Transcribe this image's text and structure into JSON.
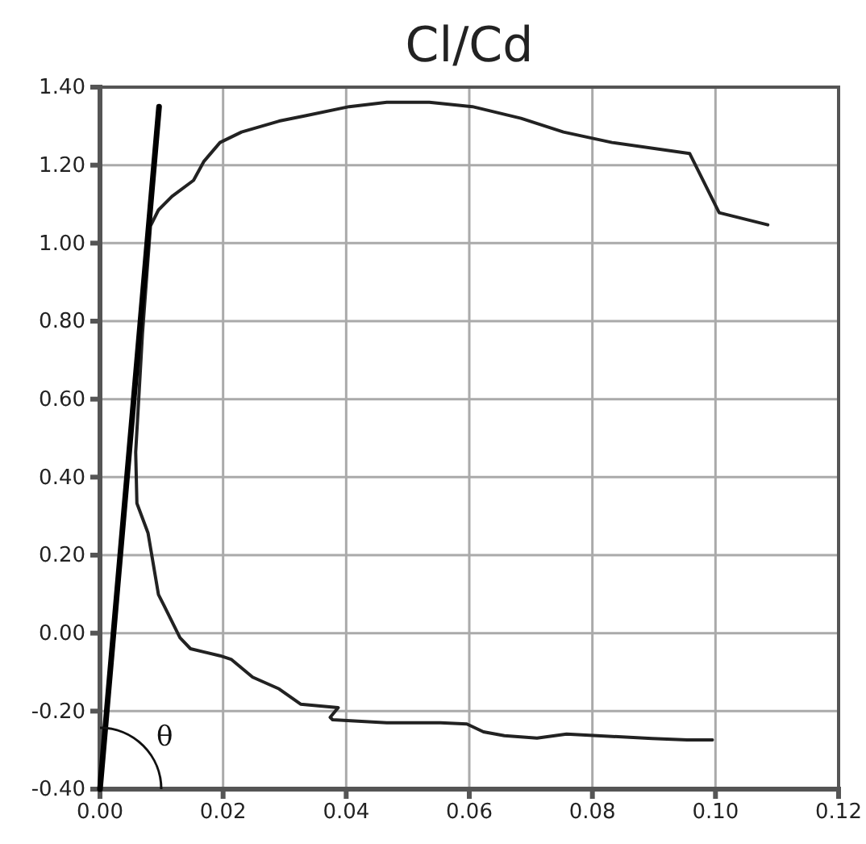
{
  "chart_data": {
    "type": "line",
    "title": "Cl/Cd",
    "xlim": [
      0,
      0.12
    ],
    "ylim": [
      -0.4,
      1.4
    ],
    "xticks": [
      {
        "value": 0,
        "label": "0.00"
      },
      {
        "value": 0.02,
        "label": "0.02"
      },
      {
        "value": 0.04,
        "label": "0.04"
      },
      {
        "value": 0.06,
        "label": "0.06"
      },
      {
        "value": 0.08,
        "label": "0.08"
      },
      {
        "value": 0.1,
        "label": "0.10"
      },
      {
        "value": 0.12,
        "label": "0.12"
      }
    ],
    "yticks": [
      {
        "value": -0.4,
        "label": "-0.40"
      },
      {
        "value": -0.2,
        "label": "-0.20"
      },
      {
        "value": 0,
        "label": "0.00"
      },
      {
        "value": 0.2,
        "label": "0.20"
      },
      {
        "value": 0.4,
        "label": "0.40"
      },
      {
        "value": 0.6,
        "label": "0.60"
      },
      {
        "value": 0.8,
        "label": "0.80"
      },
      {
        "value": 1,
        "label": "1.00"
      },
      {
        "value": 1.2,
        "label": "1.20"
      },
      {
        "value": 1.4,
        "label": "1.40"
      }
    ],
    "grid": true,
    "marker": "none",
    "line_style": "solid",
    "annotations": [
      "θ"
    ],
    "series": [
      {
        "color": "#222222",
        "x": [
          0.0995,
          0.0954,
          0.0897,
          0.0758,
          0.071,
          0.0657,
          0.0623,
          0.0596,
          0.0553,
          0.0466,
          0.0378,
          0.0374,
          0.0387,
          0.0326,
          0.0291,
          0.0248,
          0.0213,
          0.0195,
          0.0147,
          0.013,
          0.0104,
          0.0095,
          0.0078,
          0.006,
          0.0058,
          0.0069,
          0.0082,
          0.0095,
          0.0117,
          0.0152,
          0.0169,
          0.0195,
          0.023,
          0.0291,
          0.0335,
          0.0405,
          0.0466,
          0.0535,
          0.0605,
          0.0684,
          0.0753,
          0.0832,
          0.0958,
          0.1006,
          0.1085
        ],
        "values": [
          -0.274,
          -0.274,
          -0.27,
          -0.259,
          -0.269,
          -0.263,
          -0.253,
          -0.233,
          -0.23,
          -0.23,
          -0.222,
          -0.216,
          -0.191,
          -0.182,
          -0.143,
          -0.113,
          -0.067,
          -0.058,
          -0.04,
          -0.012,
          0.071,
          0.099,
          0.257,
          0.333,
          0.464,
          0.768,
          1.044,
          1.085,
          1.12,
          1.161,
          1.21,
          1.258,
          1.285,
          1.313,
          1.327,
          1.35,
          1.361,
          1.361,
          1.35,
          1.32,
          1.285,
          1.258,
          1.23,
          1.078,
          1.047
        ]
      },
      {
        "color": "#000000",
        "x": [
          0,
          0.0096
        ],
        "values": [
          -0.4,
          1.35
        ]
      }
    ]
  }
}
